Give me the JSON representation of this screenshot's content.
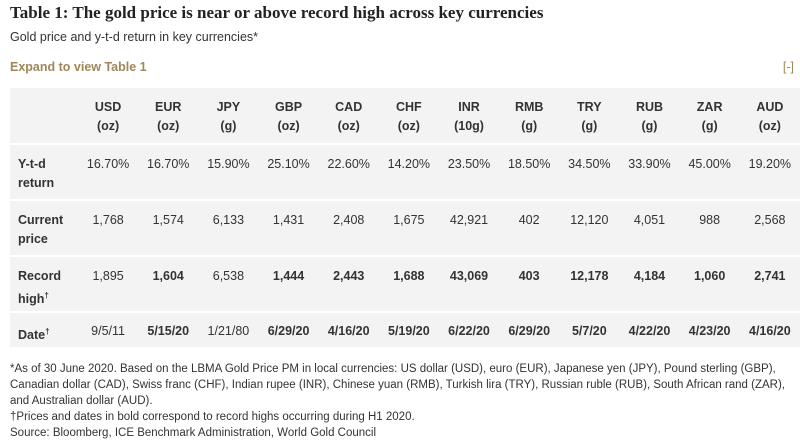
{
  "header": {
    "title": "Table 1: The gold price is near or above record high across key currencies",
    "subtitle": "Gold price and y-t-d return in key currencies*",
    "expand": "Expand to view Table 1",
    "collapse": "[-]"
  },
  "table": {
    "columns": [
      {
        "currency": "USD",
        "unit": "(oz)"
      },
      {
        "currency": "EUR",
        "unit": "(oz)"
      },
      {
        "currency": "JPY",
        "unit": "(g)"
      },
      {
        "currency": "GBP",
        "unit": "(oz)"
      },
      {
        "currency": "CAD",
        "unit": "(oz)"
      },
      {
        "currency": "CHF",
        "unit": "(oz)"
      },
      {
        "currency": "INR",
        "unit": "(10g)"
      },
      {
        "currency": "RMB",
        "unit": "(g)"
      },
      {
        "currency": "TRY",
        "unit": "(g)"
      },
      {
        "currency": "RUB",
        "unit": "(g)"
      },
      {
        "currency": "ZAR",
        "unit": "(g)"
      },
      {
        "currency": "AUD",
        "unit": "(oz)"
      }
    ],
    "rows": [
      {
        "label": "Y-t-d return",
        "cells": [
          {
            "text": "16.70%"
          },
          {
            "text": "16.70%"
          },
          {
            "text": "15.90%"
          },
          {
            "text": "25.10%"
          },
          {
            "text": "22.60%"
          },
          {
            "text": "14.20%"
          },
          {
            "text": "23.50%"
          },
          {
            "text": "18.50%"
          },
          {
            "text": "34.50%"
          },
          {
            "text": "33.90%"
          },
          {
            "text": "45.00%"
          },
          {
            "text": "19.20%"
          }
        ]
      },
      {
        "label": "Current price",
        "cells": [
          {
            "text": "1,768"
          },
          {
            "text": "1,574"
          },
          {
            "text": "6,133"
          },
          {
            "text": "1,431"
          },
          {
            "text": "2,408"
          },
          {
            "text": "1,675"
          },
          {
            "text": "42,921"
          },
          {
            "text": "402"
          },
          {
            "text": "12,120"
          },
          {
            "text": "4,051"
          },
          {
            "text": "988"
          },
          {
            "text": "2,568"
          }
        ]
      },
      {
        "label": "Record high",
        "mark": "†",
        "cells": [
          {
            "text": "1,895"
          },
          {
            "text": "1,604",
            "bold": true
          },
          {
            "text": "6,538"
          },
          {
            "text": "1,444",
            "bold": true
          },
          {
            "text": "2,443",
            "bold": true
          },
          {
            "text": "1,688",
            "bold": true
          },
          {
            "text": "43,069",
            "bold": true
          },
          {
            "text": "403",
            "bold": true
          },
          {
            "text": "12,178",
            "bold": true
          },
          {
            "text": "4,184",
            "bold": true
          },
          {
            "text": "1,060",
            "bold": true
          },
          {
            "text": "2,741",
            "bold": true
          }
        ]
      },
      {
        "label": "Date",
        "mark": "†",
        "cells": [
          {
            "text": "9/5/11"
          },
          {
            "text": "5/15/20",
            "bold": true
          },
          {
            "text": "1/21/80"
          },
          {
            "text": "6/29/20",
            "bold": true
          },
          {
            "text": "4/16/20",
            "bold": true
          },
          {
            "text": "5/19/20",
            "bold": true
          },
          {
            "text": "6/22/20",
            "bold": true
          },
          {
            "text": "6/29/20",
            "bold": true
          },
          {
            "text": "5/7/20",
            "bold": true
          },
          {
            "text": "4/22/20",
            "bold": true
          },
          {
            "text": "4/23/20",
            "bold": true
          },
          {
            "text": "4/16/20",
            "bold": true
          }
        ]
      }
    ]
  },
  "notes": [
    "*As of 30 June 2020. Based on the LBMA Gold Price PM in local currencies: US dollar (USD), euro (EUR), Japanese yen (JPY), Pound sterling (GBP), Canadian dollar (CAD), Swiss franc (CHF), Indian rupee (INR), Chinese yuan (RMB), Turkish lira (TRY), Russian ruble (RUB), South African rand (ZAR), and Australian dollar (AUD).",
    "†Prices and dates in bold correspond to record highs occurring during H1 2020.",
    "Source: Bloomberg, ICE Benchmark Administration, World Gold Council"
  ]
}
